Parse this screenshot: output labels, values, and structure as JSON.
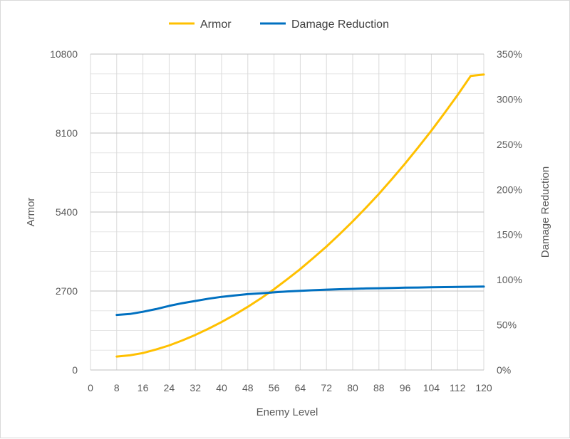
{
  "chart_data": {
    "type": "line",
    "x_label": "Enemy Level",
    "y_label": "Armor",
    "y2_label": "Damage Reduction",
    "x_ticks": [
      "0",
      "8",
      "16",
      "24",
      "32",
      "40",
      "48",
      "56",
      "64",
      "72",
      "80",
      "88",
      "96",
      "104",
      "112",
      "120"
    ],
    "y_ticks": [
      "0",
      "2700",
      "5400",
      "8100",
      "10800"
    ],
    "y2_ticks": [
      "0%",
      "50%",
      "100%",
      "150%",
      "200%",
      "250%",
      "300%",
      "350%"
    ],
    "xlim": [
      0,
      120
    ],
    "ylim": [
      0,
      10800
    ],
    "y2lim": [
      0,
      3.5
    ],
    "grid": true,
    "legend_position": "top",
    "x": [
      8,
      12,
      16,
      20,
      24,
      28,
      32,
      36,
      40,
      44,
      48,
      52,
      56,
      60,
      64,
      68,
      72,
      76,
      80,
      84,
      88,
      92,
      96,
      100,
      104,
      108,
      112,
      116,
      120
    ],
    "series": [
      {
        "name": "Armor",
        "axis": "left",
        "color": "#FFC000",
        "values": [
          460,
          500,
          580,
          700,
          840,
          1010,
          1200,
          1410,
          1640,
          1890,
          2160,
          2450,
          2760,
          3100,
          3450,
          3830,
          4220,
          4640,
          5080,
          5540,
          6020,
          6530,
          7060,
          7610,
          8180,
          8780,
          9400,
          10050,
          10100
        ]
      },
      {
        "name": "Damage Reduction",
        "axis": "right",
        "color": "#0070C0",
        "values": [
          0.61,
          0.62,
          0.645,
          0.675,
          0.71,
          0.74,
          0.765,
          0.79,
          0.81,
          0.825,
          0.84,
          0.85,
          0.86,
          0.87,
          0.877,
          0.884,
          0.89,
          0.895,
          0.899,
          0.903,
          0.906,
          0.909,
          0.912,
          0.914,
          0.916,
          0.918,
          0.92,
          0.922,
          0.924
        ]
      }
    ]
  }
}
